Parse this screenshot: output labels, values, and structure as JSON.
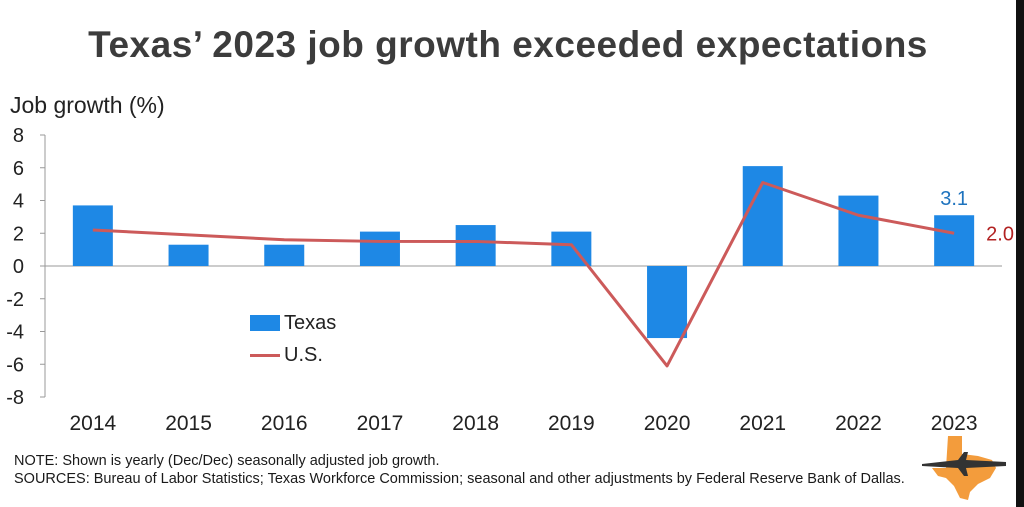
{
  "chart_data": {
    "type": "bar",
    "title": "Texas’ 2023 job growth exceeded expectations",
    "ylabel": "Job growth (%)",
    "xlabel": "",
    "ylim": [
      -8,
      8
    ],
    "yticks": [
      8,
      6,
      4,
      2,
      0,
      -2,
      -4,
      -6,
      -8
    ],
    "categories": [
      "2014",
      "2015",
      "2016",
      "2017",
      "2018",
      "2019",
      "2020",
      "2021",
      "2022",
      "2023"
    ],
    "series": [
      {
        "name": "Texas",
        "type": "bar",
        "color": "#1e88e5",
        "values": [
          3.7,
          1.3,
          1.3,
          2.1,
          2.5,
          2.1,
          -4.4,
          6.1,
          4.3,
          3.1
        ]
      },
      {
        "name": "U.S.",
        "type": "line",
        "color": "#cc5a5a",
        "values": [
          2.2,
          1.9,
          1.6,
          1.5,
          1.5,
          1.3,
          -6.1,
          5.1,
          3.1,
          2.0
        ]
      }
    ],
    "annotations": [
      {
        "label": "3.1",
        "color": "#1e73be"
      },
      {
        "label": "2.0",
        "color": "#b22222"
      }
    ],
    "legend": {
      "position": "lower-left",
      "entries": [
        "Texas",
        "U.S."
      ]
    },
    "grid": false
  },
  "notes": {
    "note": "NOTE: Shown is yearly (Dec/Dec) seasonally adjusted job growth.",
    "sources": "SOURCES: Bureau of Labor Statistics; Texas Workforce Commission; seasonal and other adjustments by Federal Reserve Bank of Dallas."
  },
  "logo": {
    "icon": "texas-airplane-logo",
    "colors": {
      "state": "#f39c3c",
      "plane": "#333333"
    }
  }
}
